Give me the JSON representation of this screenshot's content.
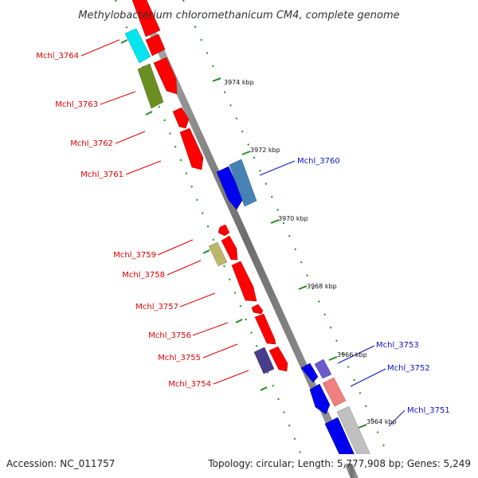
{
  "header": {
    "title": "Methylobacterium chloromethanicum CM4, complete genome"
  },
  "footer": {
    "accession": "Accession: NC_011757",
    "topology": "Topology: circular; Length: 5,777,908 bp; Genes: 5,249"
  },
  "ticks": {
    "t3974": "3974 kbp",
    "t3972": "3972 kbp",
    "t3970": "3970 kbp",
    "t3968": "3968 kbp",
    "t3966": "3966 kbp",
    "t3964": "3964 kbp"
  },
  "genes": {
    "g3764": "Mchl_3764",
    "g3763": "Mchl_3763",
    "g3762": "Mchl_3762",
    "g3761": "Mchl_3761",
    "g3760": "Mchl_3760",
    "g3759": "Mchl_3759",
    "g3758": "Mchl_3758",
    "g3757": "Mchl_3757",
    "g3756": "Mchl_3756",
    "g3755": "Mchl_3755",
    "g3754": "Mchl_3754",
    "g3753": "Mchl_3753",
    "g3752": "Mchl_3752",
    "g3751": "Mchl_3751"
  },
  "colors": {
    "forward_strand": "#ff0000",
    "reverse_strand": "#0000ee",
    "backbone": "#888888",
    "tick_marks": "#228b22"
  }
}
